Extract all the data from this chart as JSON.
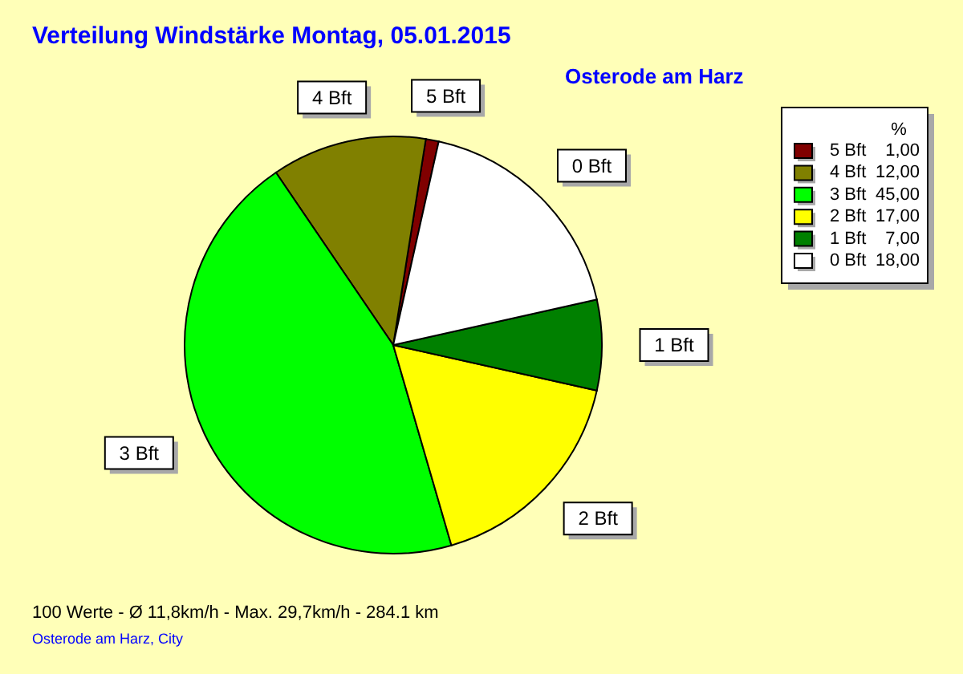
{
  "chart_data": {
    "type": "pie",
    "title": "Verteilung Windstärke  Montag, 05.01.2015",
    "subtitle": "Osterode am Harz",
    "legend_title": "%",
    "categories": [
      "5 Bft",
      "4 Bft",
      "3 Bft",
      "2 Bft",
      "1 Bft",
      "0 Bft"
    ],
    "values": [
      1,
      12,
      45,
      17,
      7,
      18
    ],
    "value_labels": [
      "1,00",
      "12,00",
      "45,00",
      "17,00",
      "7,00",
      "18,00"
    ],
    "colors": [
      "#800000",
      "#808000",
      "#00ff00",
      "#ffff00",
      "#008000",
      "#ffffff"
    ],
    "legend": "top right",
    "annotations": [
      "100 Werte  -  Ø 11,8km/h  -  Max. 29,7km/h  -  284.1 km",
      "Osterode am Harz, City"
    ]
  }
}
